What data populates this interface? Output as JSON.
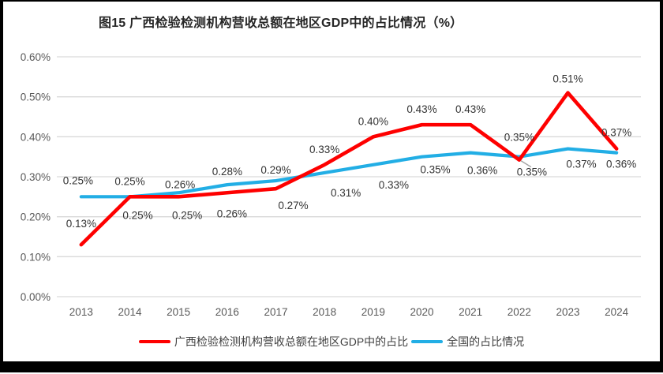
{
  "chart_data": {
    "type": "line",
    "title": "图15 广西检验检测机构营收总额在地区GDP中的占比情况（%）",
    "categories": [
      "2013",
      "2014",
      "2015",
      "2016",
      "2017",
      "2018",
      "2019",
      "2020",
      "2021",
      "2022",
      "2023",
      "2024"
    ],
    "series": [
      {
        "name": "广西检验检测机构营收总额在地区GDP中的占比",
        "color": "#FE0000",
        "values": [
          0.13,
          0.25,
          0.25,
          0.26,
          0.27,
          0.33,
          0.4,
          0.43,
          0.43,
          0.35,
          0.51,
          0.37
        ]
      },
      {
        "name": "全国的占比情况",
        "color": "#22AEE5",
        "values": [
          0.25,
          0.25,
          0.26,
          0.28,
          0.29,
          0.31,
          0.33,
          0.35,
          0.36,
          0.35,
          0.37,
          0.36
        ]
      }
    ],
    "y_ticks": [
      "0.00%",
      "0.10%",
      "0.20%",
      "0.30%",
      "0.40%",
      "0.50%",
      "0.60%"
    ],
    "ylim": [
      0,
      0.6
    ],
    "grid": true,
    "legend_position": "bottom",
    "data_label_suffix": "%",
    "colors": {
      "grid": "#D9D9D9",
      "axis_text": "#595959",
      "data_label": "#333333",
      "leader_line": "#A6A6A6",
      "frame_border": "#000000",
      "background": "#FFFFFF"
    }
  }
}
